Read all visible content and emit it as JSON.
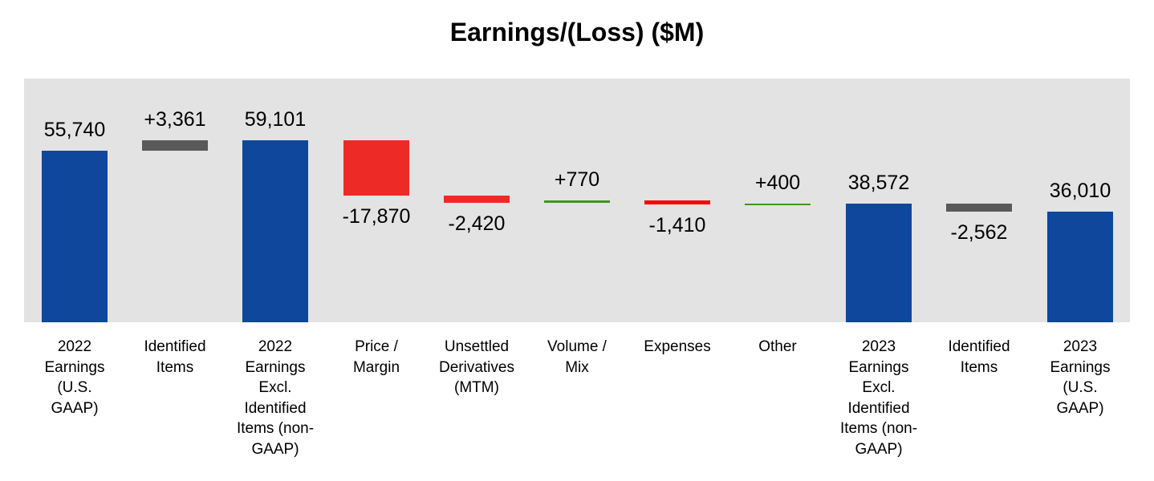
{
  "title": "Earnings/(Loss) ($M)",
  "colors": {
    "total": "#0e479c",
    "identified": "#595959",
    "negative": "#ee2a27",
    "negative_small": "#ff0000",
    "positive": "#3f961d",
    "plot_background": "#e3e3e3"
  },
  "chart_data": {
    "type": "bar",
    "subtype": "waterfall",
    "title": "Earnings/(Loss) ($M)",
    "xlabel": "",
    "ylabel": "",
    "grid": false,
    "legend": "none",
    "categories": [
      "2022 Earnings (U.S. GAAP)",
      "Identified Items",
      "2022 Earnings Excl. Identified Items (non-GAAP)",
      "Price / Margin",
      "Unsettled Derivatives (MTM)",
      "Volume / Mix",
      "Expenses",
      "Other",
      "2023 Earnings Excl. Identified Items (non-GAAP)",
      "Identified Items",
      "2023 Earnings (U.S. GAAP)"
    ],
    "values": [
      55740,
      3361,
      59101,
      -17870,
      -2420,
      770,
      -1410,
      400,
      38572,
      -2562,
      36010
    ],
    "value_labels": [
      "55,740",
      "+3,361",
      "59,101",
      "-17,870",
      "-2,420",
      "+770",
      "-1,410",
      "+400",
      "38,572",
      "-2,562",
      "36,010"
    ],
    "bar_kinds": [
      "total",
      "identified",
      "total",
      "negative",
      "negative",
      "positive",
      "negative",
      "positive",
      "total",
      "identified",
      "total"
    ]
  },
  "labels": {
    "bars": [
      {
        "value": "55,740",
        "x_lines": [
          "2022",
          "Earnings",
          "(U.S.",
          "GAAP)"
        ]
      },
      {
        "value": "+3,361",
        "x_lines": [
          "Identified",
          "Items"
        ]
      },
      {
        "value": "59,101",
        "x_lines": [
          "2022",
          "Earnings",
          "Excl.",
          "Identified",
          "Items (non-",
          "GAAP)"
        ]
      },
      {
        "value": "-17,870",
        "x_lines": [
          "Price /",
          "Margin"
        ]
      },
      {
        "value": "-2,420",
        "x_lines": [
          "Unsettled",
          "Derivatives",
          "(MTM)"
        ]
      },
      {
        "value": "+770",
        "x_lines": [
          "Volume /",
          "Mix"
        ]
      },
      {
        "value": "-1,410",
        "x_lines": [
          "Expenses"
        ]
      },
      {
        "value": "+400",
        "x_lines": [
          "Other"
        ]
      },
      {
        "value": "38,572",
        "x_lines": [
          "2023",
          "Earnings",
          "Excl.",
          "Identified",
          "Items (non-",
          "GAAP)"
        ]
      },
      {
        "value": "-2,562",
        "x_lines": [
          "Identified",
          "Items"
        ]
      },
      {
        "value": "36,010",
        "x_lines": [
          "2023",
          "Earnings",
          "(U.S.",
          "GAAP)"
        ]
      }
    ]
  }
}
